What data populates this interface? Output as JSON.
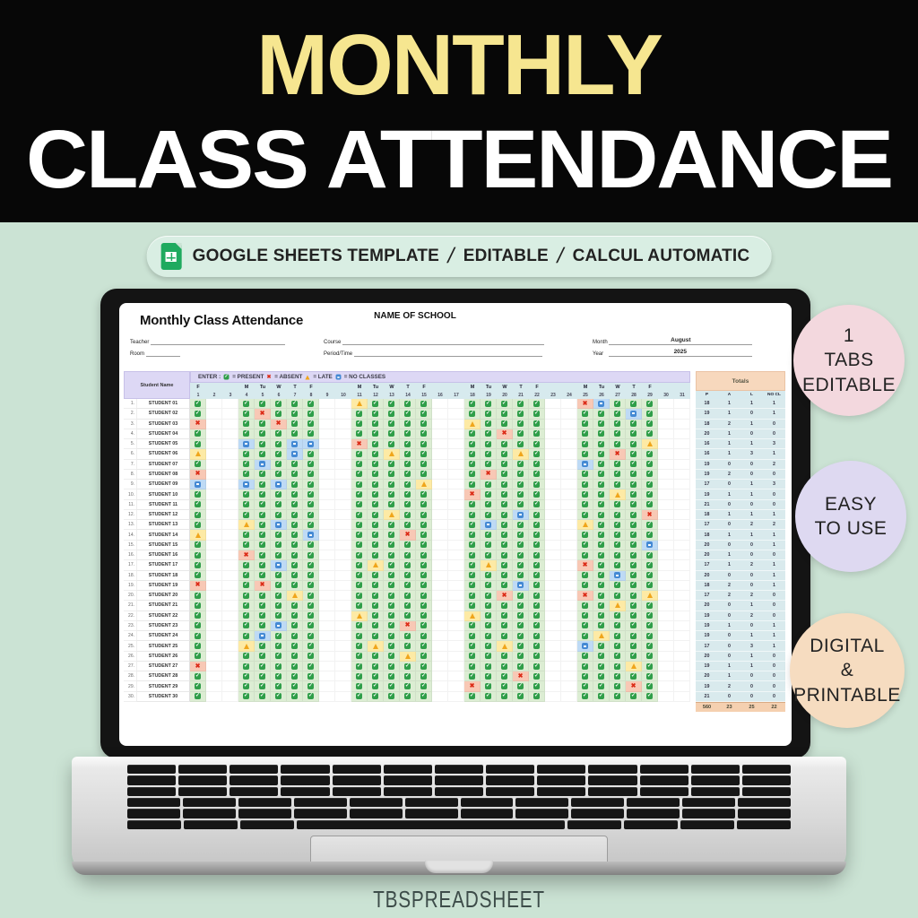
{
  "banner": {
    "line1": "MONTHLY",
    "line2": "CLASS ATTENDANCE"
  },
  "badge": {
    "icon": "google-sheets-icon",
    "items": [
      "GOOGLE SHEETS TEMPLATE",
      "EDITABLE",
      "CALCUL AUTOMATIC"
    ],
    "separator": "/"
  },
  "side_badges": [
    {
      "lines": [
        "1",
        "TABS",
        "EDITABLE"
      ],
      "color": "#f3d8de"
    },
    {
      "lines": [
        "EASY",
        "TO USE"
      ],
      "color": "#ded9f1"
    },
    {
      "lines": [
        "DIGITAL",
        "&",
        "PRINTABLE"
      ],
      "color": "#f6dcc0"
    }
  ],
  "footer": {
    "brand": "TBSPREADSHEET"
  },
  "colors": {
    "page_mint": "#cbe3d4",
    "banner_yellow": "#f6e690",
    "present_green": "#2f9e49",
    "absent_red": "#dc2c18",
    "late_yellow": "#f0a51b",
    "noclass_blue": "#4489d4",
    "legend_lavender": "#ddd8f5",
    "header_blue": "#d7eaee",
    "totals_peach": "#f7d8bd"
  },
  "sheet": {
    "title": "Monthly Class Attendance",
    "school_name": "NAME OF SCHOOL",
    "fields": {
      "teacher": {
        "label": "Teacher",
        "value": ""
      },
      "room": {
        "label": "Room",
        "value": ""
      },
      "course": {
        "label": "Course",
        "value": ""
      },
      "period": {
        "label": "Period/Time",
        "value": ""
      },
      "month": {
        "label": "Month",
        "value": "August"
      },
      "year": {
        "label": "Year",
        "value": "2025"
      }
    },
    "legend": {
      "prefix": "ENTER :",
      "items": [
        {
          "mark": "P",
          "label": "= PRESENT"
        },
        {
          "mark": "A",
          "label": "= ABSENT"
        },
        {
          "mark": "L",
          "label": "= LATE"
        },
        {
          "mark": "N",
          "label": "= NO CLASSES"
        }
      ]
    },
    "columns": {
      "student_header": "Student Name",
      "day_letters": [
        "F",
        "",
        "",
        "M",
        "Tu",
        "W",
        "T",
        "F",
        "",
        "",
        "M",
        "Tu",
        "W",
        "T",
        "F",
        "",
        "",
        "M",
        "Tu",
        "W",
        "T",
        "F",
        "",
        "",
        "M",
        "Tu",
        "W",
        "T",
        "F",
        "",
        ""
      ],
      "day_numbers": [
        1,
        2,
        3,
        4,
        5,
        6,
        7,
        8,
        9,
        10,
        11,
        12,
        13,
        14,
        15,
        16,
        17,
        18,
        19,
        20,
        21,
        22,
        23,
        24,
        25,
        26,
        27,
        28,
        29,
        30,
        31
      ],
      "totals_title": "Totals",
      "totals_columns": [
        "P",
        "A",
        "L",
        "NO CL"
      ]
    },
    "rows": [
      {
        "n": 1,
        "name": "STUDENT 01",
        "marks": "P..PPPPP..LPPPP..PPPPP..ANPPP..",
        "totals": [
          18,
          1,
          1,
          1
        ]
      },
      {
        "n": 2,
        "name": "STUDENT 02",
        "marks": "P..PAPPP..PPPPP..PPPPP..PPPNP..",
        "totals": [
          19,
          1,
          0,
          1
        ]
      },
      {
        "n": 3,
        "name": "STUDENT 03",
        "marks": "A..PPAPP..PPPPP..LPPPP..PPPPP..",
        "totals": [
          18,
          2,
          1,
          0
        ]
      },
      {
        "n": 4,
        "name": "STUDENT 04",
        "marks": "P..PPPPP..PPPPP..PPAPP..PPPPP..",
        "totals": [
          20,
          1,
          0,
          0
        ]
      },
      {
        "n": 5,
        "name": "STUDENT 05",
        "marks": "P..NPPNN..APPPP..PPPPP..PPPPL..",
        "totals": [
          16,
          1,
          1,
          3
        ]
      },
      {
        "n": 6,
        "name": "STUDENT 06",
        "marks": "L..PPPNP..PPLPP..PPPLP..PPAPP..",
        "totals": [
          16,
          1,
          3,
          1
        ]
      },
      {
        "n": 7,
        "name": "STUDENT 07",
        "marks": "P..PNPPP..PPPPP..PPPPP..NPPPP..",
        "totals": [
          19,
          0,
          0,
          2
        ]
      },
      {
        "n": 8,
        "name": "STUDENT 08",
        "marks": "A..PPPPP..PPPPP..PAPPP..PPPPP..",
        "totals": [
          19,
          2,
          0,
          0
        ]
      },
      {
        "n": 9,
        "name": "STUDENT 09",
        "marks": "N..NPNPP..PPPPL..PPPPP..PPPPP..",
        "totals": [
          17,
          0,
          1,
          3
        ]
      },
      {
        "n": 10,
        "name": "STUDENT 10",
        "marks": "P..PPPPP..PPPPP..APPPP..PPLPP..",
        "totals": [
          19,
          1,
          1,
          0
        ]
      },
      {
        "n": 11,
        "name": "STUDENT 11",
        "marks": "P..PPPPP..PPPPP..PPPPP..PPPPP..",
        "totals": [
          21,
          0,
          0,
          0
        ]
      },
      {
        "n": 12,
        "name": "STUDENT 12",
        "marks": "P..PPPPP..PPLPP..PPPNP..PPPPA..",
        "totals": [
          18,
          1,
          1,
          1
        ]
      },
      {
        "n": 13,
        "name": "STUDENT 13",
        "marks": "P..LPNPP..PPPPP..PNPPP..LPPPP..",
        "totals": [
          17,
          0,
          2,
          2
        ]
      },
      {
        "n": 14,
        "name": "STUDENT 14",
        "marks": "L..PPPPN..PPPAP..PPPPP..PPPPP..",
        "totals": [
          18,
          1,
          1,
          1
        ]
      },
      {
        "n": 15,
        "name": "STUDENT 15",
        "marks": "P..PPPPP..PPPPP..PPPPP..PPPPN..",
        "totals": [
          20,
          0,
          0,
          1
        ]
      },
      {
        "n": 16,
        "name": "STUDENT 16",
        "marks": "P..APPPP..PPPPP..PPPPP..PPPPP..",
        "totals": [
          20,
          1,
          0,
          0
        ]
      },
      {
        "n": 17,
        "name": "STUDENT 17",
        "marks": "P..PPNPP..PLPPP..PLPPP..APPPP..",
        "totals": [
          17,
          1,
          2,
          1
        ]
      },
      {
        "n": 18,
        "name": "STUDENT 18",
        "marks": "P..PPPPP..PPPPP..PPPPP..PPNPP..",
        "totals": [
          20,
          0,
          0,
          1
        ]
      },
      {
        "n": 19,
        "name": "STUDENT 19",
        "marks": "A..PAPPP..PPPPP..PPPNP..PPPPP..",
        "totals": [
          18,
          2,
          0,
          1
        ]
      },
      {
        "n": 20,
        "name": "STUDENT 20",
        "marks": "P..PPPLP..PPPPP..PPAPP..APPPL..",
        "totals": [
          17,
          2,
          2,
          0
        ]
      },
      {
        "n": 21,
        "name": "STUDENT 21",
        "marks": "P..PPPPP..PPPPP..PPPPP..PPLPP..",
        "totals": [
          20,
          0,
          1,
          0
        ]
      },
      {
        "n": 22,
        "name": "STUDENT 22",
        "marks": "P..PPPPP..LPPPP..LPPPP..PPPPP..",
        "totals": [
          19,
          0,
          2,
          0
        ]
      },
      {
        "n": 23,
        "name": "STUDENT 23",
        "marks": "P..PPNPP..PPPAP..PPPPP..PPPPP..",
        "totals": [
          19,
          1,
          0,
          1
        ]
      },
      {
        "n": 24,
        "name": "STUDENT 24",
        "marks": "P..PNPPP..PPPPP..PPPPP..PLPPP..",
        "totals": [
          19,
          0,
          1,
          1
        ]
      },
      {
        "n": 25,
        "name": "STUDENT 25",
        "marks": "P..LPPPP..PLPPP..PPLPP..NPPPP..",
        "totals": [
          17,
          0,
          3,
          1
        ]
      },
      {
        "n": 26,
        "name": "STUDENT 26",
        "marks": "P..PPPPP..PPPLP..PPPPP..PPPPP..",
        "totals": [
          20,
          0,
          1,
          0
        ]
      },
      {
        "n": 27,
        "name": "STUDENT 27",
        "marks": "A..PPPPP..PPPPP..PPPPP..PPPLP..",
        "totals": [
          19,
          1,
          1,
          0
        ]
      },
      {
        "n": 28,
        "name": "STUDENT 28",
        "marks": "P..PPPPP..PPPPP..PPPAP..PPPPP..",
        "totals": [
          20,
          1,
          0,
          0
        ]
      },
      {
        "n": 29,
        "name": "STUDENT 29",
        "marks": "P..PPPPP..PPPPP..APPPP..PPPAP..",
        "totals": [
          19,
          2,
          0,
          0
        ]
      },
      {
        "n": 30,
        "name": "STUDENT 30",
        "marks": "P..PPPPP..PPPPP..PPPPP..PPPPP..",
        "totals": [
          21,
          0,
          0,
          0
        ]
      }
    ],
    "grand_totals": [
      560,
      23,
      25,
      22
    ]
  }
}
